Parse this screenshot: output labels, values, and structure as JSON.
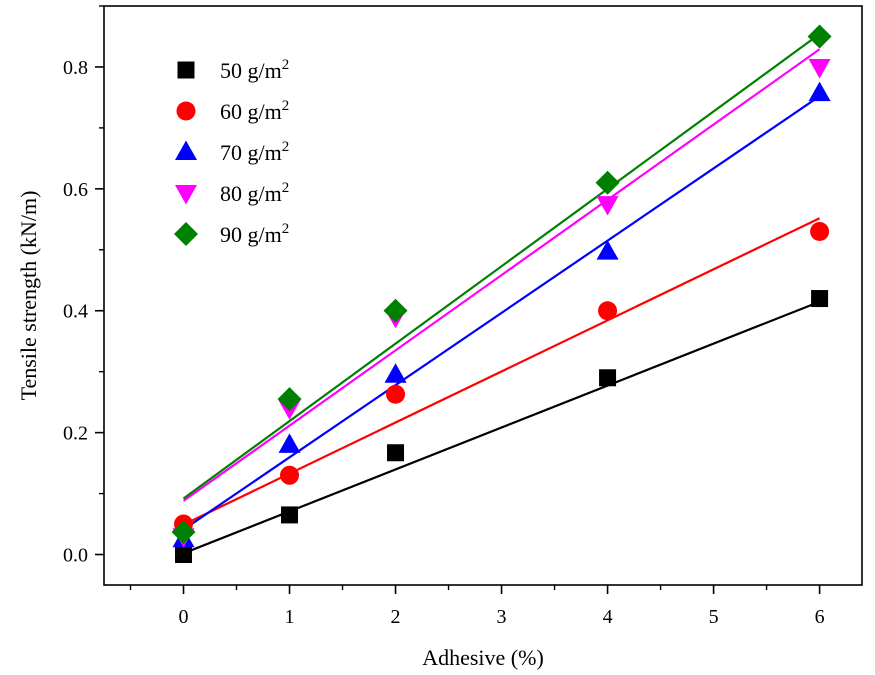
{
  "chart_data": {
    "type": "scatter",
    "xlabel": "Adhesive (%)",
    "ylabel": "Tensile strength (kN/m)",
    "xlim": [
      -0.75,
      6.4
    ],
    "ylim": [
      -0.05,
      0.9
    ],
    "x_ticks": [
      0,
      1,
      2,
      3,
      4,
      5,
      6
    ],
    "y_ticks": [
      0.0,
      0.2,
      0.4,
      0.6,
      0.8
    ],
    "x_tick_labels": [
      "0",
      "1",
      "2",
      "3",
      "4",
      "5",
      "6"
    ],
    "y_tick_labels": [
      "0.0",
      "0.2",
      "0.4",
      "0.6",
      "0.8"
    ],
    "grid": false,
    "legend_position": "top-left",
    "x": [
      0,
      1,
      2,
      4,
      6
    ],
    "series": [
      {
        "name_prefix": "50 g/m",
        "name_sup": "2",
        "marker": "square",
        "color": "#000000",
        "values": [
          0.0,
          0.065,
          0.167,
          0.29,
          0.42
        ],
        "fit": {
          "slope": 0.0688,
          "intercept": 0.002
        }
      },
      {
        "name_prefix": "60 g/m",
        "name_sup": "2",
        "marker": "circle",
        "color": "#ff0000",
        "values": [
          0.05,
          0.13,
          0.263,
          0.4,
          0.53
        ],
        "fit": {
          "slope": 0.0838,
          "intercept": 0.049
        }
      },
      {
        "name_prefix": "70 g/m",
        "name_sup": "2",
        "marker": "triangle-up",
        "color": "#0000ff",
        "values": [
          0.025,
          0.18,
          0.295,
          0.497,
          0.757
        ],
        "fit": {
          "slope": 0.1185,
          "intercept": 0.041
        }
      },
      {
        "name_prefix": "80 g/m",
        "name_sup": "2",
        "marker": "triangle-down",
        "color": "#ff00ff",
        "values": [
          0.03,
          0.24,
          0.39,
          0.575,
          0.8
        ],
        "fit": {
          "slope": 0.1235,
          "intercept": 0.088
        }
      },
      {
        "name_prefix": "90 g/m",
        "name_sup": "2",
        "marker": "diamond",
        "color": "#008000",
        "values": [
          0.037,
          0.255,
          0.4,
          0.61,
          0.85
        ],
        "fit": {
          "slope": 0.127,
          "intercept": 0.092
        }
      }
    ]
  }
}
